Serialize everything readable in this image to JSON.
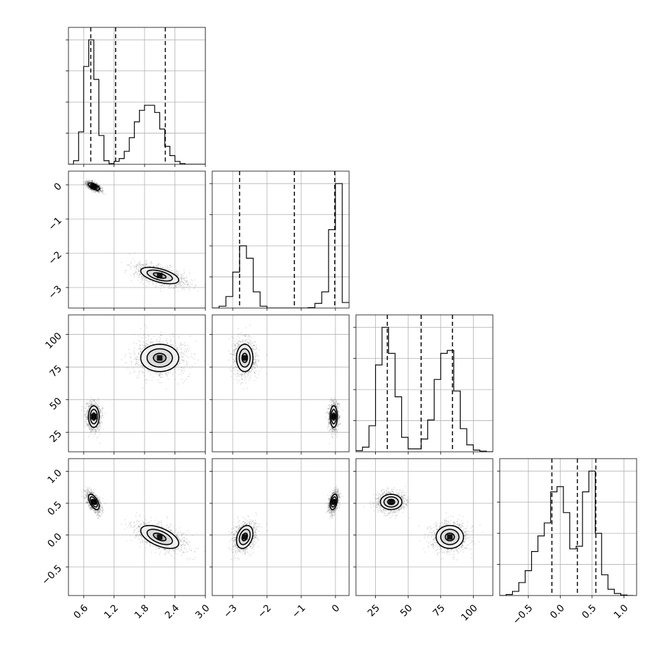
{
  "chart_data": {
    "type": "corner",
    "parameters": [
      {
        "range": [
          0.3,
          3.0
        ],
        "ticks": [
          0.6,
          1.2,
          1.8,
          2.4,
          3.0
        ],
        "tick_labels": [
          "0.6",
          "1.2",
          "1.8",
          "2.4",
          "3.0"
        ],
        "quantiles": [
          0.74,
          1.23,
          2.21
        ],
        "bin_edges": [
          0.3,
          0.4,
          0.5,
          0.6,
          0.7,
          0.8,
          0.9,
          1.0,
          1.1,
          1.2,
          1.3,
          1.4,
          1.5,
          1.6,
          1.7,
          1.8,
          1.9,
          2.0,
          2.1,
          2.2,
          2.3,
          2.4,
          2.5,
          2.6,
          2.7,
          2.8,
          2.9,
          3.0
        ],
        "hist_counts": [
          0,
          5,
          45,
          136,
          173,
          118,
          40,
          5,
          1,
          4,
          8,
          18,
          37,
          59,
          75,
          82,
          82,
          72,
          49,
          25,
          12,
          4,
          1,
          0,
          0,
          0,
          0
        ]
      },
      {
        "range": [
          -3.6,
          0.4
        ],
        "ticks": [
          -3,
          -2,
          -1,
          0
        ],
        "tick_labels": [
          "−3",
          "−2",
          "−1",
          "0"
        ],
        "quantiles": [
          -2.8,
          -1.2,
          -0.02
        ],
        "bin_edges": [
          -3.6,
          -3.4,
          -3.2,
          -3.0,
          -2.8,
          -2.6,
          -2.4,
          -2.2,
          -2.0,
          -1.8,
          -1.6,
          -1.4,
          -1.2,
          -1.0,
          -0.8,
          -0.6,
          -0.4,
          -0.2,
          0.0,
          0.2,
          0.4
        ],
        "hist_counts": [
          0,
          4,
          25,
          78,
          135,
          108,
          35,
          4,
          0,
          0,
          0,
          0,
          0,
          0,
          1,
          10,
          35,
          170,
          270,
          12
        ]
      },
      {
        "range": [
          10,
          115
        ],
        "ticks": [
          25,
          50,
          75,
          100
        ],
        "tick_labels": [
          "25",
          "50",
          "75",
          "100"
        ],
        "quantiles": [
          34,
          60,
          84
        ],
        "bin_edges": [
          10,
          15,
          20,
          25,
          30,
          35,
          40,
          45,
          50,
          55,
          60,
          65,
          70,
          75,
          80,
          85,
          90,
          95,
          100,
          105,
          110,
          115
        ],
        "hist_counts": [
          2,
          8,
          45,
          150,
          215,
          170,
          95,
          25,
          5,
          5,
          22,
          55,
          125,
          170,
          175,
          105,
          40,
          12,
          3,
          1,
          0
        ]
      },
      {
        "range": [
          -0.95,
          1.2
        ],
        "ticks": [
          -0.5,
          0.0,
          0.5,
          1.0
        ],
        "tick_labels": [
          "−0.5",
          "0.0",
          "0.5",
          "1.0"
        ],
        "quantiles": [
          -0.13,
          0.27,
          0.56
        ],
        "bin_edges": [
          -0.95,
          -0.85,
          -0.75,
          -0.65,
          -0.55,
          -0.45,
          -0.35,
          -0.25,
          -0.15,
          -0.05,
          0.05,
          0.15,
          0.25,
          0.35,
          0.45,
          0.55,
          0.65,
          0.75,
          0.85,
          0.95,
          1.05,
          1.15
        ],
        "hist_counts": [
          0,
          2,
          8,
          25,
          48,
          85,
          115,
          140,
          200,
          210,
          160,
          90,
          95,
          200,
          240,
          120,
          40,
          12,
          4,
          1,
          0
        ]
      }
    ],
    "modes": [
      {
        "center": [
          0.8,
          -0.05,
          37,
          0.52
        ],
        "sd": [
          0.07,
          0.07,
          5.5,
          0.08
        ],
        "corr01": -0.6,
        "weight": 0.5
      },
      {
        "center": [
          2.1,
          -2.65,
          82,
          -0.03
        ],
        "sd": [
          0.25,
          0.16,
          7,
          0.12
        ],
        "corr01": -0.55,
        "weight": 0.5
      }
    ],
    "n_samples_per_mode": 2200,
    "contour_levels_sigma": [
      0.5,
      1.0,
      1.5
    ]
  }
}
